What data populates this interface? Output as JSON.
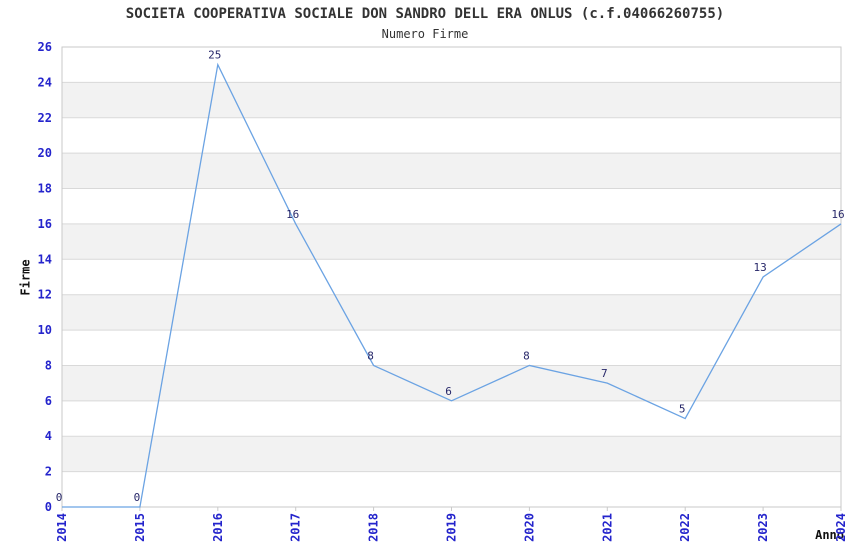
{
  "chart_data": {
    "type": "line",
    "title": "SOCIETA COOPERATIVA SOCIALE DON SANDRO DELL ERA ONLUS (c.f.04066260755)",
    "subtitle": "Numero Firme",
    "xlabel": "Anno",
    "ylabel": "Firme",
    "categories": [
      "2014",
      "2015",
      "2016",
      "2017",
      "2018",
      "2019",
      "2020",
      "2021",
      "2022",
      "2023",
      "2024"
    ],
    "values": [
      0,
      0,
      25,
      16,
      8,
      6,
      8,
      7,
      5,
      13,
      16
    ],
    "ylim": [
      0,
      26
    ],
    "ytick_step": 2,
    "grid": "horizontal-bands-alternating",
    "legend": "none",
    "x_tick_rotation": -90,
    "colors": {
      "line": "#6ba3e3",
      "tick_label": "#2424cc",
      "point_label": "#28286a",
      "band": "#f2f2f2",
      "gridline": "#d9d9d9",
      "border": "#c9c9c9",
      "title": "#333333",
      "axis_title": "#111111",
      "background": "#ffffff"
    }
  }
}
